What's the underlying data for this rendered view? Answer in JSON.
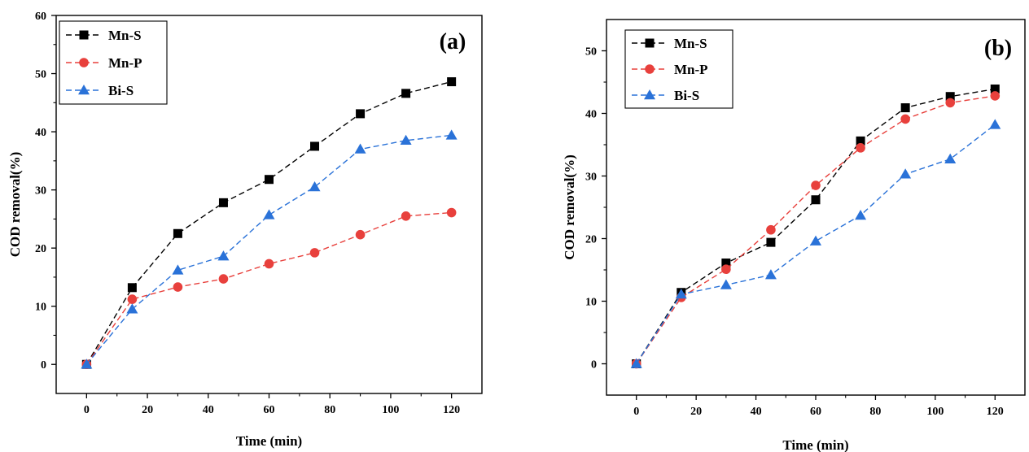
{
  "chart_data": [
    {
      "type": "line",
      "panel_label": "(a)",
      "xlabel": "Time (min)",
      "ylabel": "COD removal(%)",
      "xlim": [
        -10,
        130
      ],
      "ylim": [
        -5,
        60
      ],
      "xticks": [
        0,
        20,
        40,
        60,
        80,
        100,
        120
      ],
      "yticks": [
        0,
        10,
        20,
        30,
        40,
        50,
        60
      ],
      "x": [
        0,
        15,
        30,
        45,
        60,
        75,
        90,
        105,
        120
      ],
      "legend_position": "top-left",
      "grid": false,
      "series": [
        {
          "name": "Mn-S",
          "color": "#000000",
          "marker": "square",
          "values": [
            0,
            13.2,
            22.5,
            27.8,
            31.8,
            37.5,
            43.1,
            46.6,
            48.6
          ]
        },
        {
          "name": "Mn-P",
          "color": "#e8403c",
          "marker": "circle",
          "values": [
            0,
            11.2,
            13.3,
            14.7,
            17.3,
            19.2,
            22.3,
            25.5,
            26.1
          ]
        },
        {
          "name": "Bi-S",
          "color": "#2a72d8",
          "marker": "triangle",
          "values": [
            0,
            9.5,
            16.2,
            18.6,
            25.7,
            30.5,
            37.0,
            38.5,
            39.4
          ]
        }
      ]
    },
    {
      "type": "line",
      "panel_label": "(b)",
      "xlabel": "Time (min)",
      "ylabel": "COD removal(%)",
      "xlim": [
        -10,
        130
      ],
      "ylim": [
        -5,
        55
      ],
      "xticks": [
        0,
        20,
        40,
        60,
        80,
        100,
        120
      ],
      "yticks": [
        0,
        10,
        20,
        30,
        40,
        50
      ],
      "x": [
        0,
        15,
        30,
        45,
        60,
        75,
        90,
        105,
        120
      ],
      "legend_position": "top-left",
      "grid": false,
      "series": [
        {
          "name": "Mn-S",
          "color": "#000000",
          "marker": "square",
          "values": [
            0,
            11.4,
            16.1,
            19.4,
            26.2,
            35.6,
            40.9,
            42.7,
            43.9
          ]
        },
        {
          "name": "Mn-P",
          "color": "#e8403c",
          "marker": "circle",
          "values": [
            0,
            10.6,
            15.1,
            21.4,
            28.5,
            34.5,
            39.1,
            41.7,
            42.8
          ]
        },
        {
          "name": "Bi-S",
          "color": "#2a72d8",
          "marker": "triangle",
          "values": [
            0,
            11.1,
            12.6,
            14.2,
            19.6,
            23.7,
            30.3,
            32.7,
            38.2
          ]
        }
      ]
    }
  ]
}
